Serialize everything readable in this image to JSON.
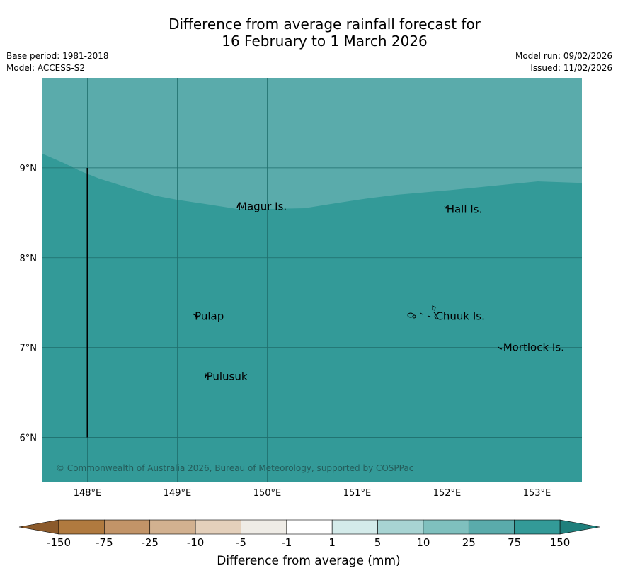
{
  "title": {
    "line1": "Difference from average rainfall forecast for",
    "line2": "16 February to 1 March 2026"
  },
  "meta": {
    "base_period": "Base period: 1981-2018",
    "model": "Model: ACCESS-S2",
    "model_run": "Model run: 09/02/2026",
    "issued": "Issued: 11/02/2026"
  },
  "map": {
    "lon_range": [
      147.5,
      153.5
    ],
    "lat_range": [
      5.5,
      10.0
    ],
    "x_ticks": [
      "148°E",
      "149°E",
      "150°E",
      "151°E",
      "152°E",
      "153°E"
    ],
    "y_ticks": [
      "9°N",
      "8°N",
      "7°N",
      "6°N"
    ],
    "boundary_line": {
      "lon": 148.0,
      "lat_from": 6.0,
      "lat_to": 9.0
    },
    "colors": {
      "upper_band": "#5aabab",
      "lower_band": "#339a98",
      "grid": "#1f6e6c"
    },
    "places": [
      {
        "name": "Magur Is.",
        "lon": 149.65,
        "lat": 8.57
      },
      {
        "name": "Hall Is.",
        "lon": 151.97,
        "lat": 8.54
      },
      {
        "name": "Pulap",
        "lon": 149.17,
        "lat": 7.35
      },
      {
        "name": "Chuuk Is.",
        "lon": 151.85,
        "lat": 7.35
      },
      {
        "name": "Mortlock Is.",
        "lon": 152.6,
        "lat": 7.0
      },
      {
        "name": "Pulusuk",
        "lon": 149.3,
        "lat": 6.68
      }
    ],
    "copyright": "© Commonwealth of Australia 2026, Bureau of Meteorology, supported by COSPPac"
  },
  "colorbar": {
    "labels": [
      "-150",
      "-75",
      "-25",
      "-10",
      "-5",
      "-1",
      "1",
      "5",
      "10",
      "25",
      "75",
      "150"
    ],
    "low_color": "#8b5a2b",
    "high_color": "#1f7f7c",
    "colors": [
      "#b07a3f",
      "#c29468",
      "#d2b190",
      "#e4d0bb",
      "#efece6",
      "#ffffff",
      "#d4ebea",
      "#a8d4d3",
      "#7fc0be",
      "#5aabab",
      "#339a98"
    ],
    "title": "Difference from average (mm)"
  }
}
